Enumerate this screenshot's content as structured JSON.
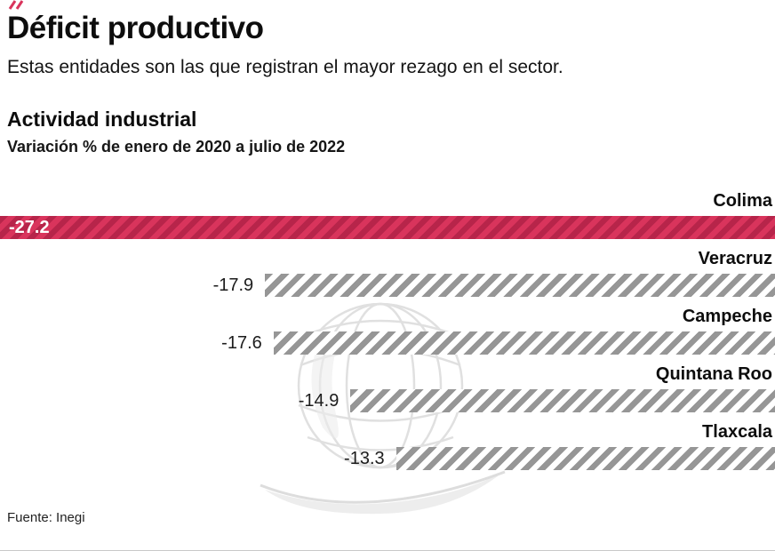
{
  "header": {
    "title": "Déficit productivo",
    "subtitle": "Estas entidades son las que registran el mayor rezago en el sector."
  },
  "footer": {
    "source": "Fuente: Inegi"
  },
  "colors": {
    "highlight_bar": "#d9345c",
    "highlight_stripe": "#9c2140",
    "gray_stripe": "#969696",
    "text": "#111111"
  },
  "chart_data": {
    "type": "bar",
    "orientation": "horizontal",
    "title": "Actividad industrial",
    "subtitle": "Variación % de enero de 2020 a julio de 2022",
    "categories": [
      "Colima",
      "Veracruz",
      "Campeche",
      "Quintana Roo",
      "Tlaxcala"
    ],
    "values": [
      -27.2,
      -17.9,
      -17.6,
      -14.9,
      -13.3
    ],
    "value_labels": [
      "-27.2",
      "-17.9",
      "-17.6",
      "-14.9",
      "-13.3"
    ],
    "xlim": [
      -27.2,
      0
    ],
    "highlight_index": 0,
    "bar_style": "diagonal-hatch",
    "legend": "none",
    "grid": "off"
  }
}
